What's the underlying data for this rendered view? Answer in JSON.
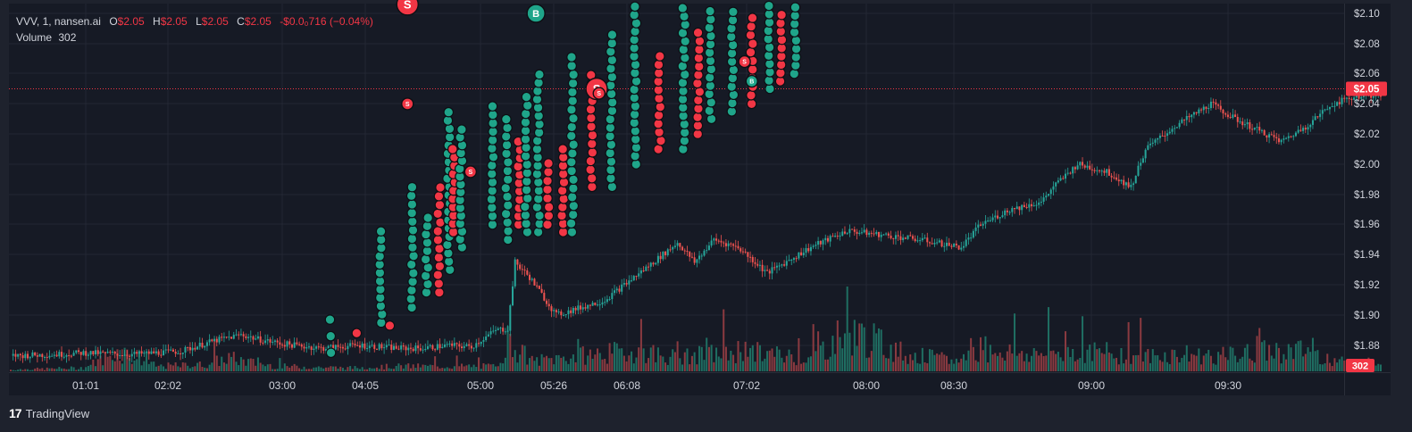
{
  "header": {
    "symbol_line": "VVV, 1, nansen.ai",
    "ohlc": {
      "o_label": "O",
      "o_value": "$2.05",
      "h_label": "H",
      "h_value": "$2.05",
      "l_label": "L",
      "l_value": "$2.05",
      "c_label": "C",
      "c_value": "$2.05",
      "change": "-$0.0₀716 (−0.04%)"
    },
    "volume_label": "Volume",
    "volume_value": "302"
  },
  "price_tag": "$2.05",
  "volume_tag": "302",
  "brand": {
    "logo_text": "17",
    "name": "TradingView"
  },
  "colors": {
    "up": "#26a69a",
    "down": "#ef5350",
    "buy_bubble": "#1fa58a",
    "sell_bubble": "#f23645",
    "background": "#161a25",
    "grid": "#232733",
    "axis_text": "#d1d4dc",
    "price_line": "#f23645"
  },
  "chart_data": {
    "type": "candlestick",
    "title": "",
    "x_axis": {
      "tick_labels": [
        "01:01",
        "02:02",
        "03:00",
        "04:05",
        "05:00",
        "05:26",
        "06:08",
        "07:02",
        "08:00",
        "08:30",
        "09:00",
        "09:30"
      ]
    },
    "y_axis": {
      "range": [
        1.865,
        2.108
      ],
      "tick_labels": [
        "$2.10",
        "$2.08",
        "$2.06",
        "$2.04",
        "$2.02",
        "$2.00",
        "$1.98",
        "$1.96",
        "$1.94",
        "$1.92",
        "$1.90",
        "$1.88"
      ],
      "tick_values": [
        2.1,
        2.08,
        2.06,
        2.04,
        2.02,
        2.0,
        1.98,
        1.96,
        1.94,
        1.92,
        1.9,
        1.88
      ]
    },
    "last_price": 2.05,
    "grid": true,
    "price_key_points": [
      [
        0,
        1.873
      ],
      [
        20,
        1.874
      ],
      [
        30,
        1.875
      ],
      [
        50,
        1.874
      ],
      [
        70,
        1.876
      ],
      [
        84,
        1.883
      ],
      [
        95,
        1.887
      ],
      [
        102,
        1.884
      ],
      [
        112,
        1.881
      ],
      [
        128,
        1.878
      ],
      [
        144,
        1.88
      ],
      [
        160,
        1.878
      ],
      [
        170,
        1.878
      ],
      [
        180,
        1.88
      ],
      [
        190,
        1.879
      ],
      [
        200,
        1.89
      ],
      [
        205,
        1.891
      ],
      [
        208,
        1.935
      ],
      [
        214,
        1.925
      ],
      [
        225,
        1.9
      ],
      [
        245,
        1.91
      ],
      [
        265,
        1.935
      ],
      [
        275,
        1.948
      ],
      [
        282,
        1.935
      ],
      [
        290,
        1.95
      ],
      [
        300,
        1.945
      ],
      [
        312,
        1.928
      ],
      [
        330,
        1.945
      ],
      [
        345,
        1.956
      ],
      [
        375,
        1.95
      ],
      [
        392,
        1.945
      ],
      [
        400,
        1.96
      ],
      [
        412,
        1.97
      ],
      [
        425,
        1.975
      ],
      [
        430,
        1.985
      ],
      [
        440,
        2.0
      ],
      [
        452,
        1.995
      ],
      [
        462,
        1.985
      ],
      [
        468,
        2.01
      ],
      [
        480,
        2.025
      ],
      [
        488,
        2.033
      ],
      [
        495,
        2.04
      ],
      [
        505,
        2.03
      ],
      [
        515,
        2.022
      ],
      [
        524,
        2.015
      ],
      [
        534,
        2.025
      ],
      [
        545,
        2.04
      ],
      [
        555,
        2.045
      ],
      [
        565,
        2.046
      ]
    ],
    "volume_key_points": [
      [
        0,
        1
      ],
      [
        30,
        2
      ],
      [
        45,
        12
      ],
      [
        60,
        3
      ],
      [
        80,
        4
      ],
      [
        90,
        8
      ],
      [
        100,
        5
      ],
      [
        110,
        3
      ],
      [
        140,
        2
      ],
      [
        160,
        3
      ],
      [
        200,
        3
      ],
      [
        205,
        18
      ],
      [
        215,
        6
      ],
      [
        240,
        10
      ],
      [
        260,
        12
      ],
      [
        275,
        8
      ],
      [
        300,
        12
      ],
      [
        330,
        8
      ],
      [
        345,
        24
      ],
      [
        370,
        10
      ],
      [
        390,
        6
      ],
      [
        400,
        14
      ],
      [
        420,
        10
      ],
      [
        440,
        12
      ],
      [
        470,
        9
      ],
      [
        485,
        10
      ],
      [
        500,
        9
      ],
      [
        520,
        12
      ],
      [
        535,
        12
      ],
      [
        550,
        5
      ],
      [
        565,
        3
      ]
    ],
    "volume_axis_max": 50,
    "buy_sell_markers": {
      "buy_label": "B",
      "sell_label": "S",
      "labeled": [
        {
          "type": "S",
          "bar": 164,
          "price": 2.106,
          "size": "large"
        },
        {
          "type": "B",
          "bar": 217,
          "price": 2.1,
          "size": "medium"
        },
        {
          "type": "S",
          "bar": 164,
          "price": 2.04,
          "size": "small"
        },
        {
          "type": "S",
          "bar": 190,
          "price": 1.995,
          "size": "small"
        },
        {
          "type": "S",
          "bar": 242,
          "price": 2.05,
          "size": "large"
        },
        {
          "type": "S",
          "bar": 243,
          "price": 2.047,
          "size": "small"
        },
        {
          "type": "S",
          "bar": 303,
          "price": 2.068,
          "size": "small"
        },
        {
          "type": "B",
          "bar": 306,
          "price": 2.055,
          "size": "small"
        }
      ],
      "columns": [
        {
          "bar": 132,
          "type": "buy",
          "from": 1.875,
          "to": 1.897,
          "step": 0.011
        },
        {
          "bar": 143,
          "type": "sell",
          "from": 1.888,
          "to": 1.888,
          "step": 0.01
        },
        {
          "bar": 153,
          "type": "buy",
          "from": 1.895,
          "to": 1.96,
          "step": 0.0055
        },
        {
          "bar": 157,
          "type": "sell",
          "from": 1.893,
          "to": 1.893,
          "step": 0.01
        },
        {
          "bar": 166,
          "type": "buy",
          "from": 1.905,
          "to": 1.985,
          "step": 0.0057
        },
        {
          "bar": 172,
          "type": "buy",
          "from": 1.915,
          "to": 1.965,
          "step": 0.0055
        },
        {
          "bar": 177,
          "type": "sell",
          "from": 1.915,
          "to": 1.985,
          "step": 0.0058
        },
        {
          "bar": 181,
          "type": "buy",
          "from": 1.93,
          "to": 2.035,
          "step": 0.0055
        },
        {
          "bar": 183,
          "type": "sell",
          "from": 1.955,
          "to": 2.01,
          "step": 0.0055
        },
        {
          "bar": 186,
          "type": "buy",
          "from": 1.945,
          "to": 2.025,
          "step": 0.0052
        },
        {
          "bar": 199,
          "type": "buy",
          "from": 1.96,
          "to": 2.04,
          "step": 0.0056
        },
        {
          "bar": 205,
          "type": "buy",
          "from": 1.95,
          "to": 2.035,
          "step": 0.0057
        },
        {
          "bar": 210,
          "type": "sell",
          "from": 1.96,
          "to": 2.015,
          "step": 0.0055
        },
        {
          "bar": 213,
          "type": "buy",
          "from": 1.955,
          "to": 2.045,
          "step": 0.0056
        },
        {
          "bar": 218,
          "type": "buy",
          "from": 1.955,
          "to": 2.06,
          "step": 0.0055
        },
        {
          "bar": 222,
          "type": "sell",
          "from": 1.96,
          "to": 2.005,
          "step": 0.0058
        },
        {
          "bar": 228,
          "type": "sell",
          "from": 1.955,
          "to": 2.01,
          "step": 0.0055
        },
        {
          "bar": 232,
          "type": "buy",
          "from": 1.955,
          "to": 2.075,
          "step": 0.0058
        },
        {
          "bar": 240,
          "type": "sell",
          "from": 1.985,
          "to": 2.06,
          "step": 0.0057
        },
        {
          "bar": 248,
          "type": "buy",
          "from": 1.985,
          "to": 2.09,
          "step": 0.0056
        },
        {
          "bar": 258,
          "type": "buy",
          "from": 2.0,
          "to": 2.105,
          "step": 0.0055
        },
        {
          "bar": 268,
          "type": "sell",
          "from": 2.01,
          "to": 2.075,
          "step": 0.0056
        },
        {
          "bar": 278,
          "type": "buy",
          "from": 2.01,
          "to": 2.105,
          "step": 0.0055
        },
        {
          "bar": 284,
          "type": "sell",
          "from": 2.02,
          "to": 2.09,
          "step": 0.0056
        },
        {
          "bar": 289,
          "type": "buy",
          "from": 2.03,
          "to": 2.105,
          "step": 0.0055
        },
        {
          "bar": 298,
          "type": "buy",
          "from": 2.035,
          "to": 2.105,
          "step": 0.0055
        },
        {
          "bar": 306,
          "type": "sell",
          "from": 2.04,
          "to": 2.1,
          "step": 0.0057
        },
        {
          "bar": 313,
          "type": "buy",
          "from": 2.05,
          "to": 2.105,
          "step": 0.0055
        },
        {
          "bar": 318,
          "type": "sell",
          "from": 2.055,
          "to": 2.1,
          "step": 0.0055
        },
        {
          "bar": 324,
          "type": "buy",
          "from": 2.06,
          "to": 2.105,
          "step": 0.0055
        }
      ]
    }
  }
}
